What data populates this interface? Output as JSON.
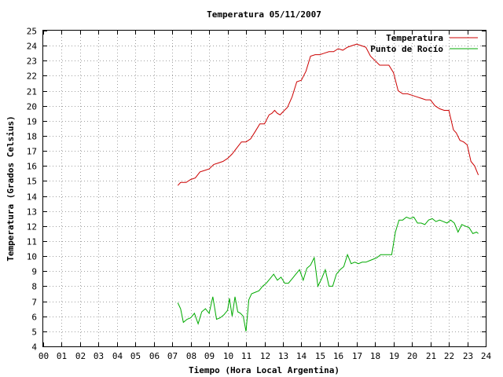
{
  "chart_data": {
    "type": "line",
    "title": "Temperatura 05/11/2007",
    "xlabel": "Tiempo (Hora Local Argentina)",
    "ylabel": "Temperatura (Grados Celsius)",
    "xlim": [
      0,
      24
    ],
    "ylim": [
      4,
      25
    ],
    "grid": true,
    "legend_position": "top-right",
    "x_tick_labels": [
      "00",
      "01",
      "02",
      "03",
      "04",
      "05",
      "06",
      "07",
      "08",
      "09",
      "10",
      "11",
      "12",
      "13",
      "14",
      "15",
      "16",
      "17",
      "18",
      "19",
      "20",
      "21",
      "22",
      "23",
      "24"
    ],
    "y_tick_labels": [
      "4",
      "5",
      "6",
      "7",
      "8",
      "9",
      "10",
      "11",
      "12",
      "13",
      "14",
      "15",
      "16",
      "17",
      "18",
      "19",
      "20",
      "21",
      "22",
      "23",
      "24",
      "25"
    ],
    "series": [
      {
        "name": "Temperatura",
        "color": "#cc0000",
        "x": [
          7.3,
          7.45,
          7.75,
          8.0,
          8.25,
          8.5,
          8.75,
          9.0,
          9.25,
          9.5,
          9.75,
          10.0,
          10.25,
          10.5,
          10.75,
          11.0,
          11.25,
          11.5,
          11.75,
          12.0,
          12.25,
          12.4,
          12.55,
          12.7,
          12.85,
          13.0,
          13.25,
          13.5,
          13.75,
          14.0,
          14.25,
          14.5,
          14.75,
          15.0,
          15.25,
          15.5,
          15.75,
          16.0,
          16.25,
          16.5,
          16.75,
          17.0,
          17.25,
          17.5,
          17.75,
          18.0,
          18.25,
          18.5,
          18.75,
          19.0,
          19.25,
          19.5,
          19.75,
          20.0,
          20.25,
          20.5,
          20.75,
          21.0,
          21.25,
          21.5,
          21.75,
          22.0,
          22.25,
          22.4,
          22.6,
          22.8,
          23.0,
          23.2,
          23.4,
          23.6
        ],
        "y": [
          14.7,
          14.9,
          14.9,
          15.1,
          15.2,
          15.6,
          15.7,
          15.8,
          16.1,
          16.2,
          16.3,
          16.5,
          16.8,
          17.2,
          17.6,
          17.6,
          17.8,
          18.3,
          18.8,
          18.8,
          19.4,
          19.5,
          19.7,
          19.5,
          19.4,
          19.6,
          19.9,
          20.6,
          21.6,
          21.7,
          22.3,
          23.3,
          23.4,
          23.4,
          23.5,
          23.6,
          23.6,
          23.8,
          23.7,
          23.9,
          24.0,
          24.1,
          24.0,
          23.9,
          23.3,
          23.0,
          22.7,
          22.7,
          22.7,
          22.2,
          21.0,
          20.8,
          20.8,
          20.7,
          20.6,
          20.5,
          20.4,
          20.4,
          20.0,
          19.8,
          19.7,
          19.7,
          18.4,
          18.2,
          17.7,
          17.6,
          17.4,
          16.3,
          16.0,
          15.4
        ]
      },
      {
        "name": "Punto de Rocío",
        "color": "#00aa00",
        "x": [
          7.3,
          7.45,
          7.6,
          7.8,
          8.0,
          8.2,
          8.4,
          8.6,
          8.8,
          9.0,
          9.2,
          9.4,
          9.6,
          9.8,
          10.0,
          10.1,
          10.25,
          10.4,
          10.55,
          10.7,
          10.85,
          11.0,
          11.15,
          11.3,
          11.5,
          11.7,
          11.9,
          12.1,
          12.3,
          12.5,
          12.7,
          12.9,
          13.1,
          13.3,
          13.5,
          13.7,
          13.9,
          14.1,
          14.3,
          14.5,
          14.7,
          14.9,
          15.1,
          15.3,
          15.5,
          15.7,
          15.9,
          16.1,
          16.3,
          16.5,
          16.7,
          16.9,
          17.1,
          17.3,
          17.5,
          17.7,
          17.9,
          18.1,
          18.3,
          18.5,
          18.7,
          18.9,
          19.1,
          19.3,
          19.5,
          19.7,
          19.9,
          20.1,
          20.3,
          20.5,
          20.7,
          20.9,
          21.1,
          21.3,
          21.5,
          21.7,
          21.9,
          22.1,
          22.3,
          22.5,
          22.7,
          22.9,
          23.1,
          23.3,
          23.5,
          23.6
        ],
        "y": [
          6.9,
          6.5,
          5.6,
          5.8,
          5.9,
          6.2,
          5.5,
          6.3,
          6.5,
          6.2,
          7.3,
          5.8,
          5.9,
          6.1,
          6.4,
          7.2,
          6.0,
          7.3,
          6.3,
          6.2,
          6.0,
          5.0,
          7.1,
          7.5,
          7.6,
          7.7,
          8.0,
          8.2,
          8.5,
          8.8,
          8.4,
          8.6,
          8.2,
          8.2,
          8.5,
          8.8,
          9.1,
          8.4,
          9.2,
          9.4,
          9.9,
          8.0,
          8.5,
          9.1,
          8.0,
          8.0,
          8.8,
          9.1,
          9.3,
          10.1,
          9.5,
          9.6,
          9.5,
          9.6,
          9.6,
          9.7,
          9.8,
          9.9,
          10.1,
          10.1,
          10.1,
          10.1,
          11.6,
          12.4,
          12.4,
          12.6,
          12.5,
          12.6,
          12.2,
          12.2,
          12.1,
          12.4,
          12.5,
          12.3,
          12.4,
          12.3,
          12.2,
          12.4,
          12.2,
          11.6,
          12.1,
          12.0,
          11.9,
          11.5,
          11.6,
          11.5
        ]
      }
    ]
  }
}
